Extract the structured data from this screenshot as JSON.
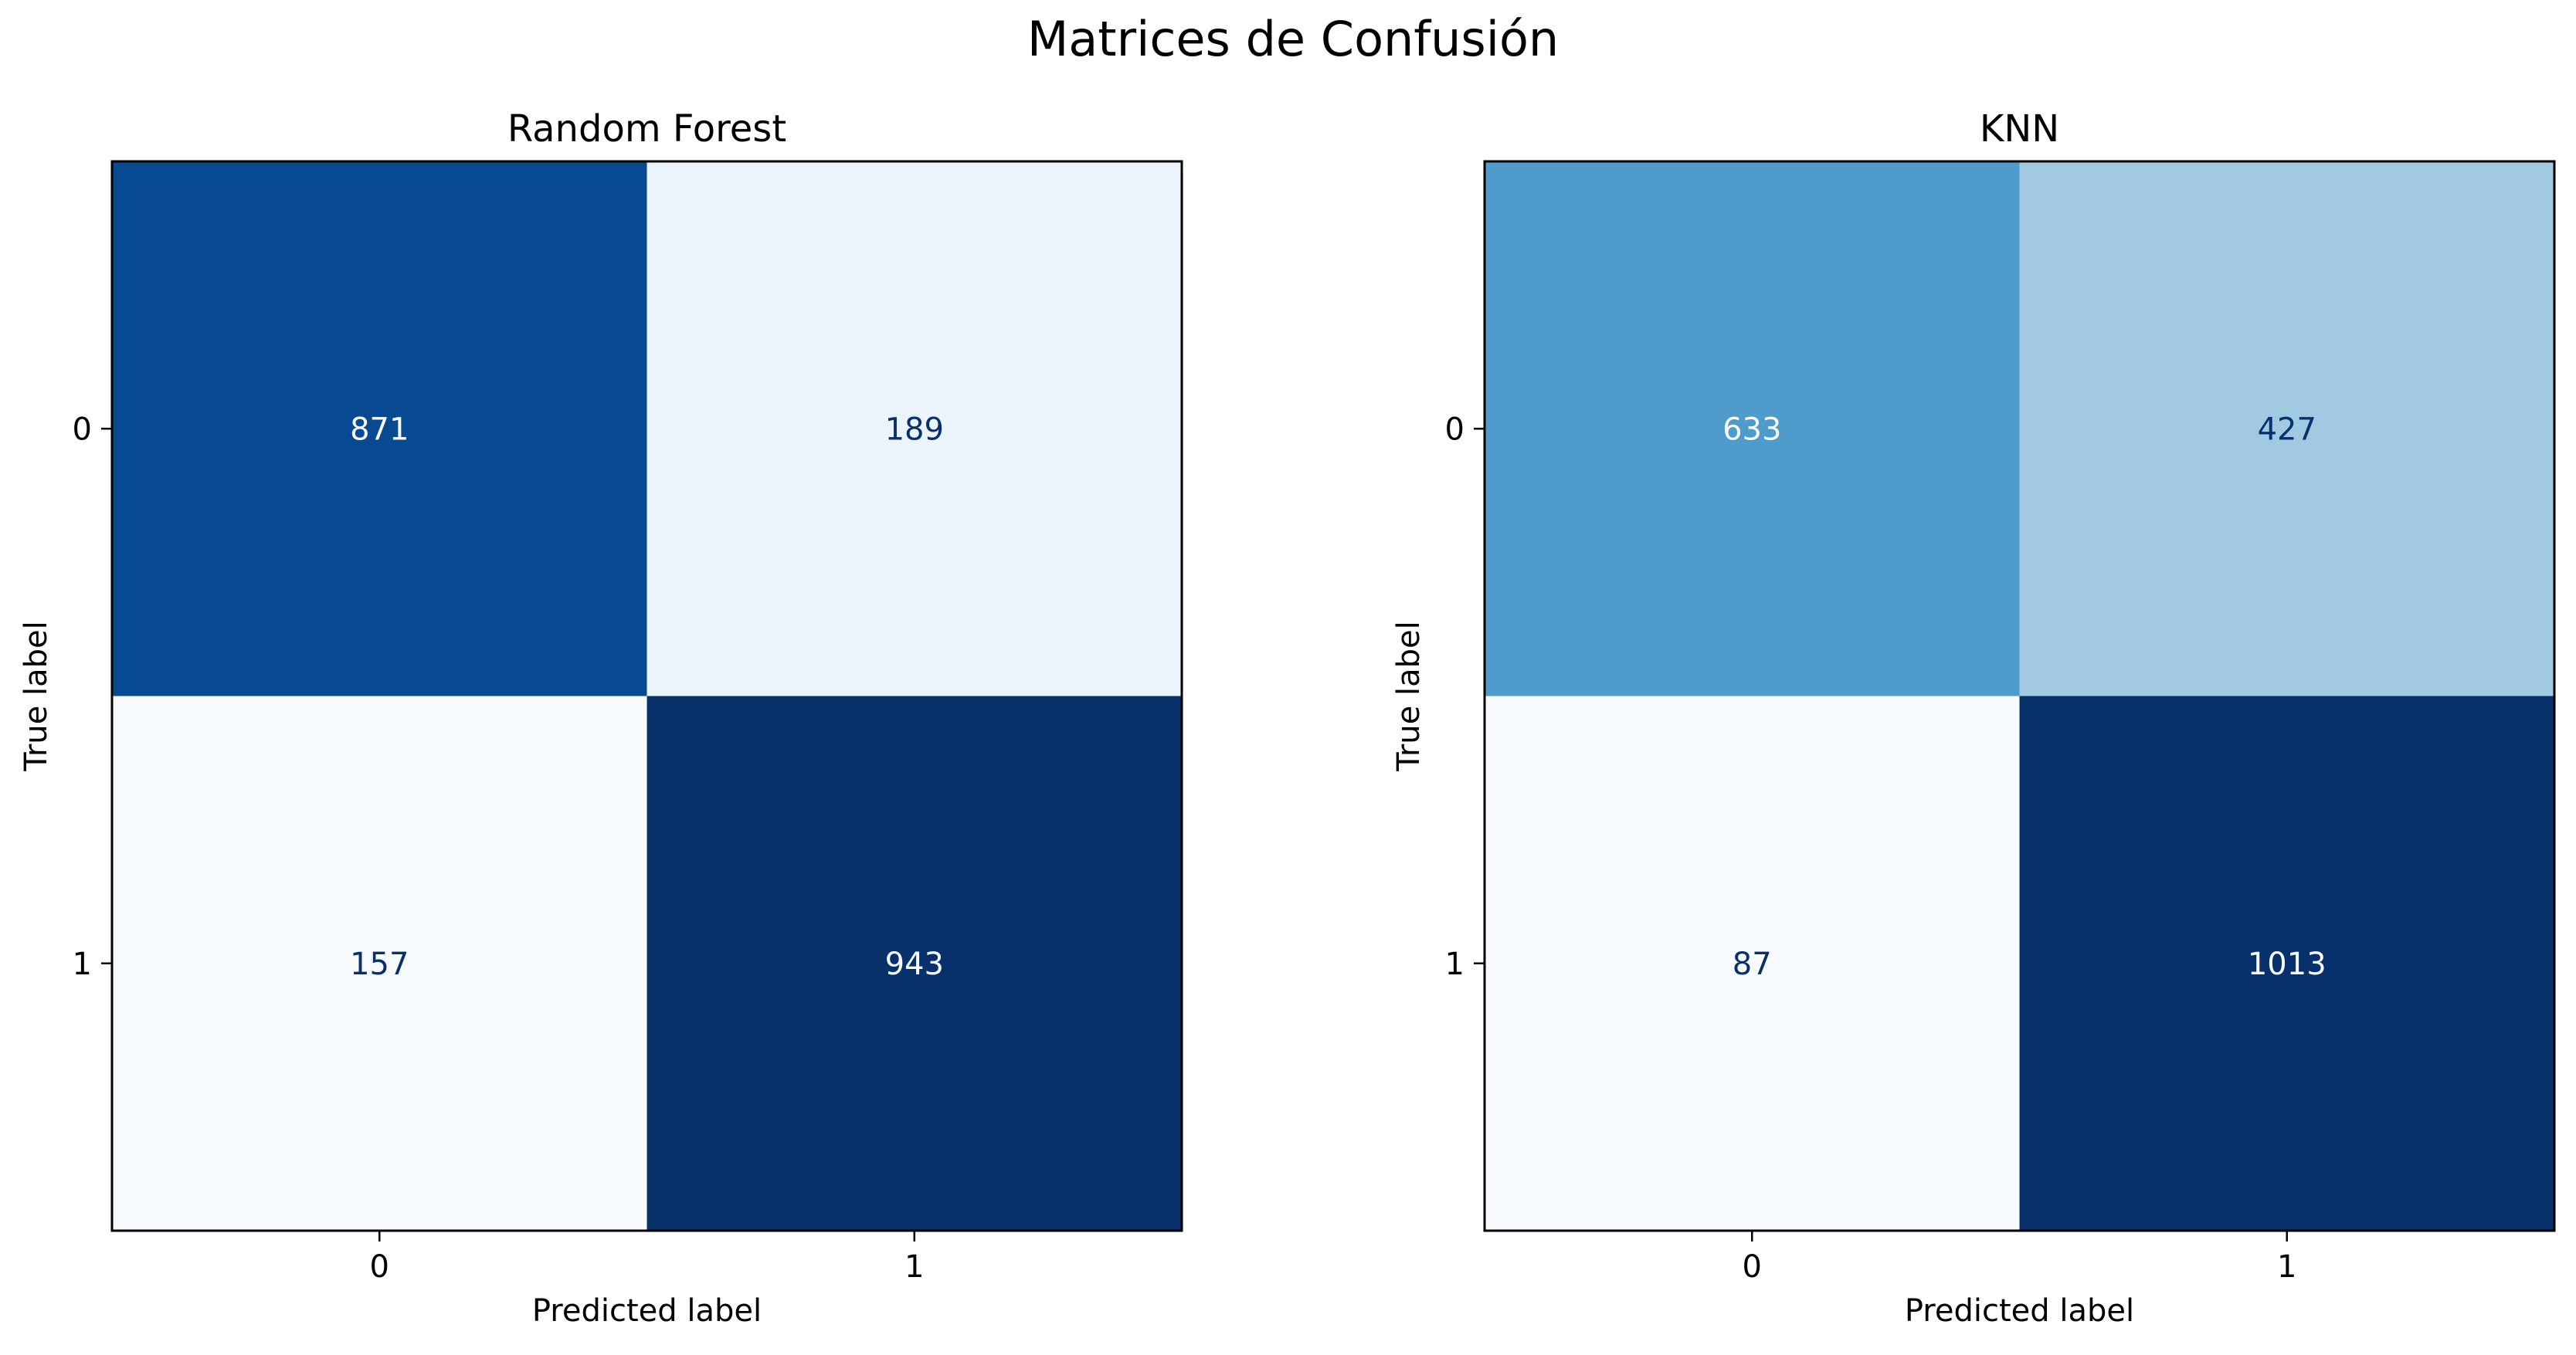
{
  "title": "Matrices de Confusión",
  "chart_data": [
    {
      "type": "heatmap",
      "title": "Random Forest",
      "xlabel": "Predicted label",
      "ylabel": "True label",
      "x_categories": [
        "0",
        "1"
      ],
      "y_categories": [
        "0",
        "1"
      ],
      "values": [
        [
          871,
          189
        ],
        [
          157,
          943
        ]
      ],
      "colormap": "Blues",
      "cell_colors": [
        [
          "#084a91",
          "#ebf3fb"
        ],
        [
          "#f7fbff",
          "#08306b"
        ]
      ],
      "text_colors": [
        [
          "#f7fbff",
          "#08306b"
        ],
        [
          "#08306b",
          "#f7fbff"
        ]
      ],
      "grid": false,
      "colorbar": false
    },
    {
      "type": "heatmap",
      "title": "KNN",
      "xlabel": "Predicted label",
      "ylabel": "True label",
      "x_categories": [
        "0",
        "1"
      ],
      "y_categories": [
        "0",
        "1"
      ],
      "values": [
        [
          633,
          427
        ],
        [
          87,
          1013
        ]
      ],
      "colormap": "Blues",
      "cell_colors": [
        [
          "#4f9bcb",
          "#a1c9e1"
        ],
        [
          "#f7fbff",
          "#08306b"
        ]
      ],
      "text_colors": [
        [
          "#f7fbff",
          "#08306b"
        ],
        [
          "#08306b",
          "#f7fbff"
        ]
      ],
      "grid": false,
      "colorbar": false
    }
  ]
}
